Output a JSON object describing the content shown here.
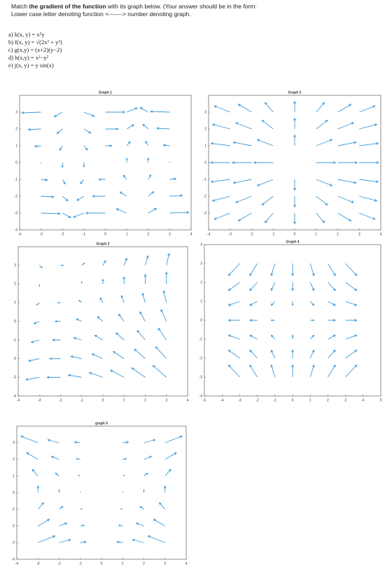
{
  "instructions": {
    "line1_before": "Match ",
    "line1_bold": "the gradient of the function",
    "line1_after": " with its graph below. (Your answer should be in the form:",
    "line2": "Lower case letter denoting function <-------> number denoting graph."
  },
  "functions": [
    "a) k(x, y) = x²y",
    "b) f(x, y) = √(2x² + y²)",
    "c) g(x,y) = (x+2)(y−2)",
    "d) h(x,y) = x²−y²",
    "e) j(x, y) = y sin(x)"
  ],
  "chart_data": [
    {
      "type": "quiver",
      "title": "Graph 1",
      "color": "#3f9ad6",
      "x": [
        -3,
        -2,
        -1,
        0,
        1,
        2,
        3
      ],
      "y": [
        3,
        2,
        1,
        0,
        -1,
        -2,
        -3
      ],
      "u": [
        [
          -2.97,
          -1.26,
          1.62,
          3,
          1.62,
          -1.26,
          -2.97
        ],
        [
          -1.98,
          -0.84,
          1.08,
          2,
          1.08,
          -0.84,
          -1.98
        ],
        [
          -0.99,
          -0.42,
          0.54,
          1,
          0.54,
          -0.42,
          -0.99
        ],
        [
          0,
          0,
          0,
          0,
          0,
          0,
          0
        ],
        [
          0.99,
          0.42,
          -0.54,
          -1,
          -0.54,
          0.42,
          0.99
        ],
        [
          1.98,
          0.84,
          -1.08,
          -2,
          -1.08,
          0.84,
          1.98
        ],
        [
          2.97,
          1.26,
          -1.62,
          -3,
          -1.62,
          1.26,
          2.97
        ]
      ],
      "v": [
        [
          -0.14,
          -0.91,
          -0.84,
          0,
          0.84,
          0.91,
          0.14
        ],
        [
          -0.14,
          -0.91,
          -0.84,
          0,
          0.84,
          0.91,
          0.14
        ],
        [
          -0.14,
          -0.91,
          -0.84,
          0,
          0.84,
          0.91,
          0.14
        ],
        [
          -0.14,
          -0.91,
          -0.84,
          0,
          0.84,
          0.91,
          0.14
        ],
        [
          -0.14,
          -0.91,
          -0.84,
          0,
          0.84,
          0.91,
          0.14
        ],
        [
          -0.14,
          -0.91,
          -0.84,
          0,
          0.84,
          0.91,
          0.14
        ],
        [
          -0.14,
          -0.91,
          -0.84,
          0,
          0.84,
          0.91,
          0.14
        ]
      ],
      "xlim": [
        -4,
        4
      ],
      "ylim": [
        -4,
        4
      ],
      "xticks": [
        -4,
        -3,
        -2,
        -1,
        0,
        1,
        2,
        3,
        4
      ],
      "yticks": [
        -4,
        -3,
        -2,
        -1,
        0,
        1,
        2,
        3
      ]
    },
    {
      "type": "quiver",
      "title": "Graph 2",
      "color": "#3f9ad6",
      "x": [
        -3,
        -2,
        -1,
        0,
        1,
        2,
        3
      ],
      "y": [
        3,
        2,
        1,
        0,
        -1,
        -2,
        -3
      ],
      "u": [
        [
          -1.15,
          -0.97,
          -0.6,
          0,
          0.6,
          0.97,
          1.15
        ],
        [
          -1.28,
          -1.15,
          -0.82,
          0,
          0.82,
          1.15,
          1.28
        ],
        [
          -1.38,
          -1.33,
          -1.15,
          0,
          1.15,
          1.33,
          1.38
        ],
        [
          -1.41,
          -1.41,
          -1.41,
          null,
          1.41,
          1.41,
          1.41
        ],
        [
          -1.38,
          -1.33,
          -1.15,
          0,
          1.15,
          1.33,
          1.38
        ],
        [
          -1.28,
          -1.15,
          -0.82,
          0,
          0.82,
          1.15,
          1.28
        ],
        [
          -1.15,
          -0.97,
          -0.6,
          0,
          0.6,
          0.97,
          1.15
        ]
      ],
      "v": [
        [
          0.58,
          0.73,
          0.9,
          1,
          0.9,
          0.73,
          0.58
        ],
        [
          0.43,
          0.58,
          0.82,
          1,
          0.82,
          0.58,
          0.43
        ],
        [
          0.23,
          0.33,
          0.58,
          1,
          0.58,
          0.33,
          0.23
        ],
        [
          0,
          0,
          0,
          null,
          0,
          0,
          0
        ],
        [
          -0.23,
          -0.33,
          -0.58,
          -1,
          -0.58,
          -0.33,
          -0.23
        ],
        [
          -0.43,
          -0.58,
          -0.82,
          -1,
          -0.82,
          -0.58,
          -0.43
        ],
        [
          -0.58,
          -0.73,
          -0.9,
          -1,
          -0.9,
          -0.73,
          -0.58
        ]
      ],
      "xlim": [
        -4,
        4
      ],
      "ylim": [
        -4,
        4
      ],
      "xticks": [
        -4,
        -3,
        -2,
        -1,
        0,
        1,
        2,
        3,
        4
      ],
      "yticks": [
        -3,
        -2,
        -1,
        0,
        1,
        2,
        3
      ]
    },
    {
      "type": "quiver",
      "title": "Graph 3",
      "color": "#3f9ad6",
      "x": [
        -3,
        -2,
        -1,
        0,
        1,
        2,
        3
      ],
      "y": [
        3,
        2,
        1,
        0,
        -1,
        -2,
        -3
      ],
      "u": [
        [
          1,
          1,
          1,
          1,
          1,
          1,
          1
        ],
        [
          0,
          0,
          0,
          0,
          0,
          0,
          0
        ],
        [
          -1,
          -1,
          -1,
          -1,
          -1,
          -1,
          -1
        ],
        [
          -2,
          -2,
          -2,
          -2,
          -2,
          -2,
          -2
        ],
        [
          -3,
          -3,
          -3,
          -3,
          -3,
          -3,
          -3
        ],
        [
          -4,
          -4,
          -4,
          -4,
          -4,
          -4,
          -4
        ],
        [
          -5,
          -5,
          -5,
          -5,
          -5,
          -5,
          -5
        ]
      ],
      "v": [
        [
          -1,
          0,
          1,
          2,
          3,
          4,
          5
        ],
        [
          -1,
          0,
          1,
          2,
          3,
          4,
          5
        ],
        [
          -1,
          0,
          1,
          2,
          3,
          4,
          5
        ],
        [
          -1,
          0,
          1,
          2,
          3,
          4,
          5
        ],
        [
          -1,
          0,
          1,
          2,
          3,
          4,
          5
        ],
        [
          -1,
          0,
          1,
          2,
          3,
          4,
          5
        ],
        [
          -1,
          0,
          1,
          2,
          3,
          4,
          5
        ]
      ],
      "xlim": [
        -4,
        4
      ],
      "ylim": [
        -4,
        4
      ],
      "xticks": [
        -4,
        -3,
        -2,
        -1,
        0,
        1,
        2,
        3,
        4
      ],
      "yticks": [
        -4,
        -3,
        -2,
        -1,
        0,
        1,
        2,
        3
      ]
    },
    {
      "type": "quiver",
      "title": "Graph 4",
      "color": "#3f9ad6",
      "x": [
        -3,
        -2,
        -1,
        0,
        1,
        2,
        3
      ],
      "y": [
        3,
        2,
        1,
        0,
        -1,
        -2,
        -3
      ],
      "u": [
        [
          -6,
          -4,
          -2,
          0,
          2,
          4,
          6
        ],
        [
          -6,
          -4,
          -2,
          0,
          2,
          4,
          6
        ],
        [
          -6,
          -4,
          -2,
          0,
          2,
          4,
          6
        ],
        [
          -6,
          -4,
          -2,
          0,
          2,
          4,
          6
        ],
        [
          -6,
          -4,
          -2,
          0,
          2,
          4,
          6
        ],
        [
          -6,
          -4,
          -2,
          0,
          2,
          4,
          6
        ],
        [
          -6,
          -4,
          -2,
          0,
          2,
          4,
          6
        ]
      ],
      "v": [
        [
          -6,
          -6,
          -6,
          -6,
          -6,
          -6,
          -6
        ],
        [
          -4,
          -4,
          -4,
          -4,
          -4,
          -4,
          -4
        ],
        [
          -2,
          -2,
          -2,
          -2,
          -2,
          -2,
          -2
        ],
        [
          0,
          0,
          0,
          0,
          0,
          0,
          0
        ],
        [
          2,
          2,
          2,
          2,
          2,
          2,
          2
        ],
        [
          4,
          4,
          4,
          4,
          4,
          4,
          4
        ],
        [
          6,
          6,
          6,
          6,
          6,
          6,
          6
        ]
      ],
      "xlim": [
        -5,
        5
      ],
      "ylim": [
        -4,
        4
      ],
      "xticks": [
        -5,
        -4,
        -3,
        -2,
        -1,
        0,
        1,
        2,
        3,
        4,
        5
      ],
      "yticks": [
        -4,
        -3,
        -2,
        -1,
        0,
        1,
        2,
        3,
        4
      ]
    },
    {
      "type": "quiver",
      "title": "graph 5",
      "color": "#3f9ad6",
      "x": [
        -3,
        -2,
        -1,
        0,
        1,
        2,
        3
      ],
      "y": [
        3,
        2,
        1,
        0,
        -1,
        -2,
        -3
      ],
      "u": [
        [
          -18,
          -12,
          -6,
          0,
          6,
          12,
          18
        ],
        [
          -12,
          -8,
          -4,
          0,
          4,
          8,
          12
        ],
        [
          -6,
          -4,
          -2,
          0,
          2,
          4,
          6
        ],
        [
          0,
          0,
          0,
          0,
          0,
          0,
          0
        ],
        [
          6,
          4,
          2,
          0,
          -2,
          -4,
          -6
        ],
        [
          12,
          8,
          4,
          0,
          -4,
          -8,
          -12
        ],
        [
          18,
          12,
          6,
          0,
          -6,
          -12,
          -18
        ]
      ],
      "v": [
        [
          9,
          4,
          1,
          0,
          1,
          4,
          9
        ],
        [
          9,
          4,
          1,
          0,
          1,
          4,
          9
        ],
        [
          9,
          4,
          1,
          0,
          1,
          4,
          9
        ],
        [
          9,
          4,
          1,
          0,
          1,
          4,
          9
        ],
        [
          9,
          4,
          1,
          0,
          1,
          4,
          9
        ],
        [
          9,
          4,
          1,
          0,
          1,
          4,
          9
        ],
        [
          9,
          4,
          1,
          0,
          1,
          4,
          9
        ]
      ],
      "xlim": [
        -4,
        4
      ],
      "ylim": [
        -4,
        4
      ],
      "xticks": [
        -4,
        -3,
        -2,
        -1,
        0,
        1,
        2,
        3,
        4
      ],
      "yticks": [
        -4,
        -3,
        -2,
        -1,
        0,
        1,
        2,
        3
      ]
    }
  ]
}
